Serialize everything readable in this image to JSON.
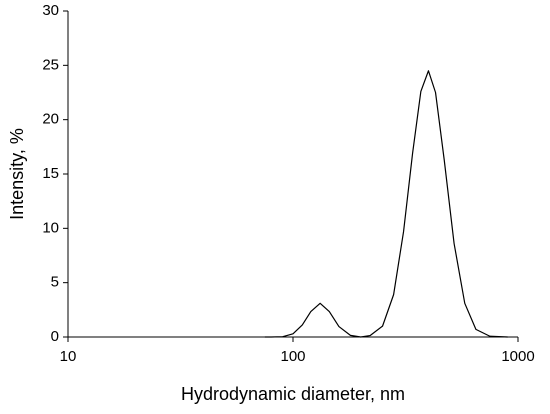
{
  "chart_data": {
    "type": "line",
    "xlabel": "Hydrodynamic diameter, nm",
    "ylabel": "Intensity, %",
    "xscale": "log",
    "xlim": [
      10,
      1000
    ],
    "xticks": [
      10,
      100,
      1000
    ],
    "ylim": [
      0,
      30
    ],
    "yticks": [
      0,
      5,
      10,
      15,
      20,
      25,
      30
    ],
    "grid": false,
    "x": [
      75,
      80,
      90,
      100,
      110,
      120,
      132,
      145,
      160,
      180,
      200,
      220,
      250,
      280,
      310,
      340,
      370,
      400,
      430,
      470,
      520,
      580,
      650,
      750,
      900
    ],
    "series": [
      {
        "color": "#000000",
        "values": [
          0,
          0,
          0.03,
          0.29,
          1.11,
          2.34,
          3.1,
          2.34,
          0.96,
          0.15,
          0,
          0.13,
          1.0,
          3.9,
          9.7,
          16.9,
          22.6,
          24.5,
          22.5,
          16.3,
          8.6,
          3.1,
          0.7,
          0.07,
          0
        ]
      }
    ]
  }
}
